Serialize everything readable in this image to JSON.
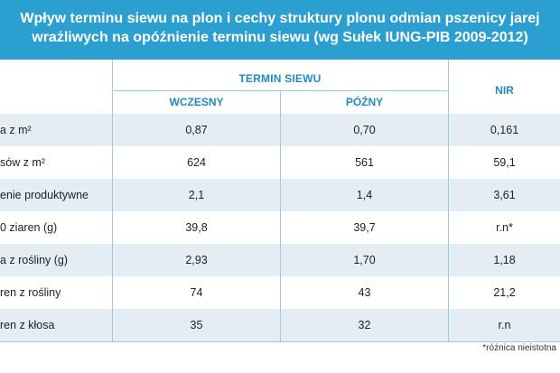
{
  "title": {
    "line1": "Wpływ terminu siewu na plon i cechy struktury plonu odmian pszenicy jarej",
    "line2": "wrażliwych na opóźnienie terminu siewu (wg Sułek IUNG-PIB 2009-2012)"
  },
  "header": {
    "group": "TERMIN SIEWU",
    "col_early": "WCZESNY",
    "col_late": "PÓŹNY",
    "col_nir": "NIR"
  },
  "rows": [
    {
      "label": "a z m²",
      "early": "0,87",
      "late": "0,70",
      "nir": "0,161"
    },
    {
      "label": "sów z m²",
      "early": "624",
      "late": "561",
      "nir": "59,1"
    },
    {
      "label": "enie produktywne",
      "early": "2,1",
      "late": "1,4",
      "nir": "3,61"
    },
    {
      "label": "0 ziaren (g)",
      "early": "39,8",
      "late": "39,7",
      "nir": "r.n*"
    },
    {
      "label": "a z rośliny (g)",
      "early": "2,93",
      "late": "1,70",
      "nir": "1,18"
    },
    {
      "label": "ren z rośliny",
      "early": "74",
      "late": "43",
      "nir": "21,2"
    },
    {
      "label": "ren z kłosa",
      "early": "35",
      "late": "32",
      "nir": "r.n"
    }
  ],
  "footnote": "*różnica nieistotna",
  "colors": {
    "title_bg": "#2a9fd0",
    "header_text": "#1f8bc3",
    "row_alt": "#e3edf3"
  }
}
